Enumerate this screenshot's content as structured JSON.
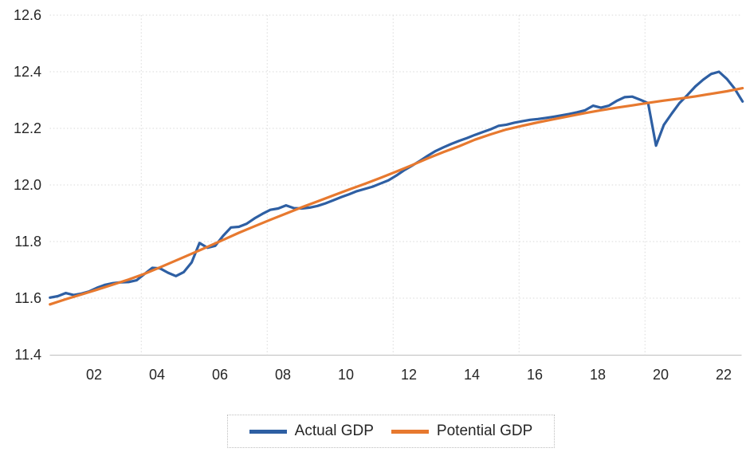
{
  "chart_data": {
    "type": "line",
    "title": "",
    "grid": true,
    "x_axis": {
      "tick_labels": [
        "02",
        "04",
        "06",
        "08",
        "10",
        "12",
        "14",
        "16",
        "18",
        "20",
        "22"
      ],
      "tick_values": [
        2002,
        2004,
        2006,
        2008,
        2010,
        2012,
        2014,
        2016,
        2018,
        2020,
        2022
      ],
      "gridline_values": [
        2003.5,
        2007.5,
        2011.5,
        2015.5,
        2019.5
      ],
      "range": [
        2000.55,
        2022.65
      ]
    },
    "y_axis": {
      "tick_labels": [
        "11.4",
        "11.6",
        "11.8",
        "12.0",
        "12.2",
        "12.4",
        "12.6"
      ],
      "tick_values": [
        11.4,
        11.6,
        11.8,
        12.0,
        12.2,
        12.4,
        12.6
      ],
      "range": [
        11.4,
        12.6
      ]
    },
    "legend": {
      "position": "bottom"
    },
    "series": [
      {
        "name": "Actual GDP",
        "color": "#2E5FA3",
        "x": [
          2000.6,
          2000.85,
          2001.1,
          2001.35,
          2001.6,
          2001.85,
          2002.1,
          2002.35,
          2002.6,
          2002.85,
          2003.1,
          2003.35,
          2003.6,
          2003.85,
          2004.1,
          2004.35,
          2004.6,
          2004.85,
          2005.1,
          2005.35,
          2005.6,
          2005.85,
          2006.1,
          2006.35,
          2006.6,
          2006.85,
          2007.1,
          2007.35,
          2007.6,
          2007.85,
          2008.1,
          2008.35,
          2008.6,
          2008.85,
          2009.1,
          2009.35,
          2009.6,
          2009.85,
          2010.1,
          2010.35,
          2010.6,
          2010.85,
          2011.1,
          2011.35,
          2011.6,
          2011.85,
          2012.1,
          2012.35,
          2012.6,
          2012.85,
          2013.1,
          2013.35,
          2013.6,
          2013.85,
          2014.1,
          2014.35,
          2014.6,
          2014.85,
          2015.1,
          2015.35,
          2015.6,
          2015.85,
          2016.1,
          2016.35,
          2016.6,
          2016.85,
          2017.1,
          2017.35,
          2017.6,
          2017.85,
          2018.1,
          2018.35,
          2018.6,
          2018.85,
          2019.1,
          2019.35,
          2019.6,
          2019.85,
          2020.1,
          2020.35,
          2020.6,
          2020.85,
          2021.1,
          2021.35,
          2021.6,
          2021.85,
          2022.1,
          2022.35,
          2022.6
        ],
        "y": [
          11.602,
          11.607,
          11.618,
          11.611,
          11.616,
          11.624,
          11.637,
          11.647,
          11.653,
          11.656,
          11.657,
          11.663,
          11.685,
          11.707,
          11.705,
          11.69,
          11.678,
          11.692,
          11.726,
          11.795,
          11.778,
          11.785,
          11.82,
          11.85,
          11.852,
          11.863,
          11.882,
          11.898,
          11.912,
          11.917,
          11.928,
          11.918,
          11.917,
          11.92,
          11.926,
          11.935,
          11.946,
          11.957,
          11.967,
          11.978,
          11.986,
          11.994,
          12.005,
          12.016,
          12.033,
          12.052,
          12.068,
          12.085,
          12.103,
          12.12,
          12.133,
          12.145,
          12.156,
          12.166,
          12.177,
          12.187,
          12.197,
          12.209,
          12.213,
          12.22,
          12.225,
          12.23,
          12.233,
          12.237,
          12.241,
          12.246,
          12.251,
          12.257,
          12.264,
          12.28,
          12.273,
          12.28,
          12.297,
          12.31,
          12.312,
          12.301,
          12.289,
          12.139,
          12.212,
          12.252,
          12.29,
          12.318,
          12.348,
          12.372,
          12.392,
          12.4,
          12.375,
          12.34,
          12.295
        ]
      },
      {
        "name": "Potential GDP",
        "color": "#E7792F",
        "x": [
          2000.6,
          2001.1,
          2001.6,
          2002.1,
          2002.6,
          2003.1,
          2003.6,
          2004.1,
          2004.6,
          2005.1,
          2005.6,
          2006.1,
          2006.6,
          2007.1,
          2007.6,
          2008.1,
          2008.6,
          2009.1,
          2009.6,
          2010.1,
          2010.6,
          2011.1,
          2011.6,
          2012.1,
          2012.6,
          2013.1,
          2013.6,
          2014.1,
          2014.6,
          2015.1,
          2015.6,
          2016.1,
          2016.6,
          2017.1,
          2017.6,
          2018.1,
          2018.6,
          2019.1,
          2019.6,
          2020.1,
          2020.6,
          2021.1,
          2021.6,
          2022.1,
          2022.6
        ],
        "y": [
          11.578,
          11.596,
          11.613,
          11.63,
          11.648,
          11.666,
          11.686,
          11.709,
          11.733,
          11.757,
          11.781,
          11.806,
          11.831,
          11.854,
          11.877,
          11.899,
          11.921,
          11.942,
          11.963,
          11.984,
          12.004,
          12.025,
          12.047,
          12.07,
          12.094,
          12.116,
          12.137,
          12.16,
          12.179,
          12.196,
          12.209,
          12.221,
          12.232,
          12.243,
          12.254,
          12.264,
          12.273,
          12.281,
          12.29,
          12.298,
          12.305,
          12.313,
          12.322,
          12.331,
          12.342
        ]
      }
    ],
    "style": {
      "gridline_color": "#d9d9d9",
      "axis_line_color": "#bfbfbf",
      "tick_label_color": "#262626",
      "line_width": 3.2
    }
  }
}
